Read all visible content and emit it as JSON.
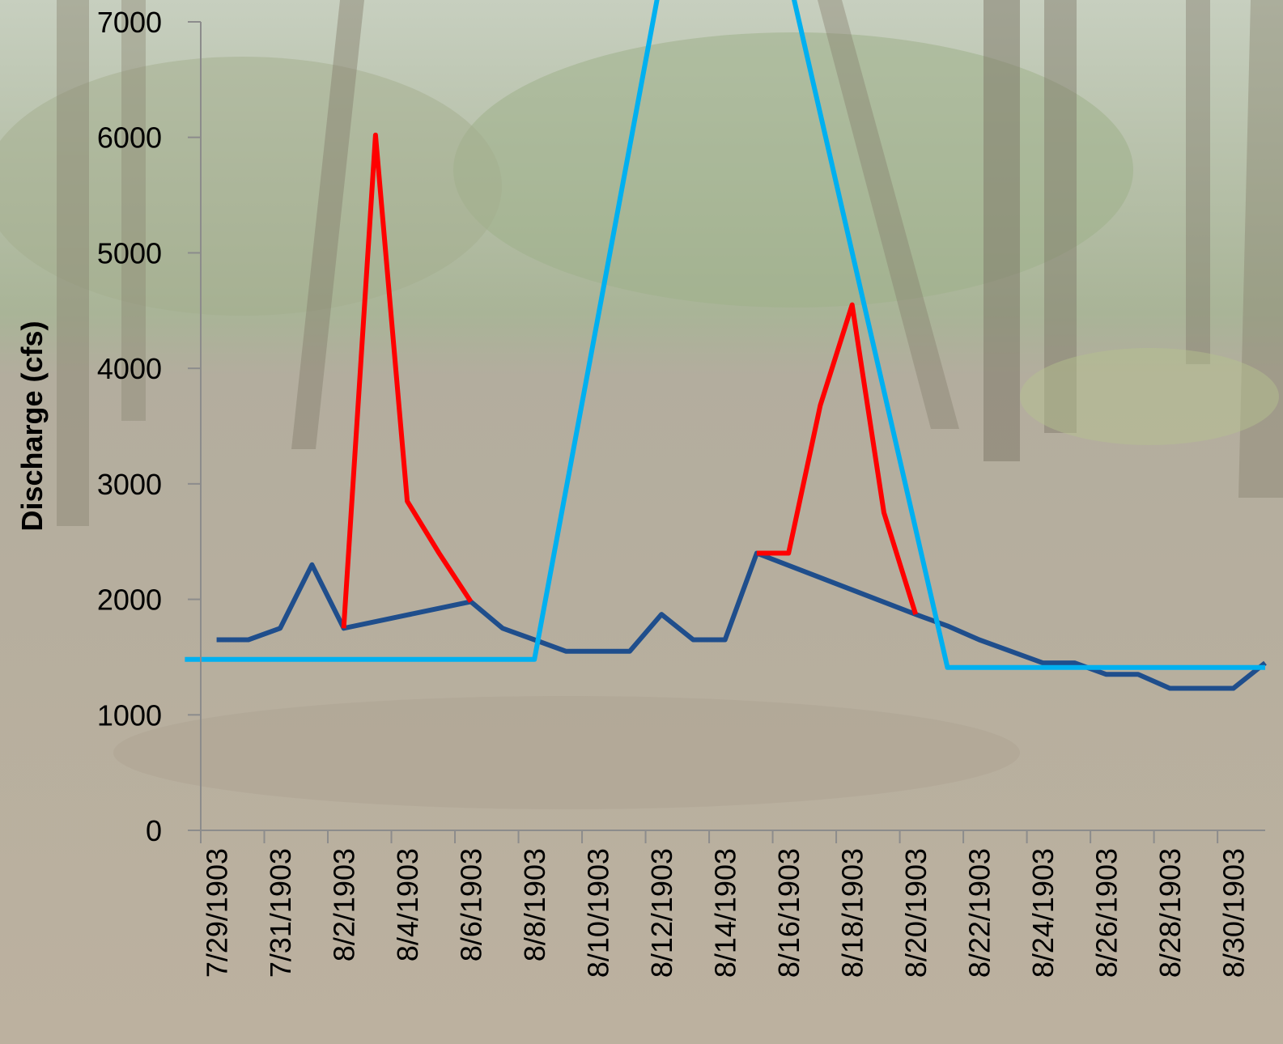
{
  "chart_data": {
    "type": "line",
    "title": "",
    "xlabel": "",
    "ylabel": "Discharge (cfs)",
    "ylim": [
      0,
      7000
    ],
    "yticks": [
      0,
      1000,
      2000,
      3000,
      4000,
      5000,
      6000,
      7000
    ],
    "xlim": [
      "7/29/1903",
      "8/31/1903"
    ],
    "xticks": [
      "7/29/1903",
      "7/31/1903",
      "8/2/1903",
      "8/4/1903",
      "8/6/1903",
      "8/8/1903",
      "8/10/1903",
      "8/12/1903",
      "8/14/1903",
      "8/16/1903",
      "8/18/1903",
      "8/20/1903",
      "8/22/1903",
      "8/24/1903",
      "8/26/1903",
      "8/28/1903",
      "8/30/1903"
    ],
    "grid": false,
    "legend": "none",
    "background": "photograph of a flooded forest",
    "series": [
      {
        "color": "#1f4e8c",
        "x": [
          "7/29/1903",
          "7/30/1903",
          "7/31/1903",
          "8/1/1903",
          "8/2/1903",
          "8/6/1903",
          "8/7/1903",
          "8/8/1903",
          "8/9/1903",
          "8/10/1903",
          "8/11/1903",
          "8/12/1903",
          "8/13/1903",
          "8/14/1903",
          "8/15/1903",
          "8/20/1903",
          "8/21/1903",
          "8/22/1903",
          "8/23/1903",
          "8/24/1903",
          "8/25/1903",
          "8/26/1903",
          "8/27/1903",
          "8/28/1903",
          "8/29/1903",
          "8/30/1903",
          "8/31/1903"
        ],
        "values": [
          1650,
          1650,
          1750,
          2300,
          1750,
          1980,
          1750,
          1650,
          1550,
          1550,
          1550,
          1870,
          1650,
          1650,
          2400,
          1870,
          1770,
          1650,
          1550,
          1450,
          1450,
          1350,
          1350,
          1230,
          1230,
          1230,
          1450
        ]
      },
      {
        "color": "#ff0000",
        "x": [
          "8/2/1903",
          "8/3/1903",
          "8/4/1903",
          "8/5/1903",
          "8/6/1903"
        ],
        "values": [
          1750,
          6020,
          2850,
          2400,
          1980
        ]
      },
      {
        "color": "#ff0000",
        "x": [
          "8/15/1903",
          "8/16/1903",
          "8/17/1903",
          "8/18/1903",
          "8/19/1903",
          "8/20/1903"
        ],
        "values": [
          2400,
          2400,
          3680,
          4550,
          2750,
          1870
        ]
      },
      {
        "color": "#00b0f0",
        "x": [
          "7/28/1903",
          "8/8/1903",
          "8/12/1903",
          "8/16/1903",
          "8/21/1903",
          "8/31/1903"
        ],
        "values": [
          1480,
          1480,
          7400,
          7400,
          1410,
          1410
        ]
      }
    ]
  }
}
